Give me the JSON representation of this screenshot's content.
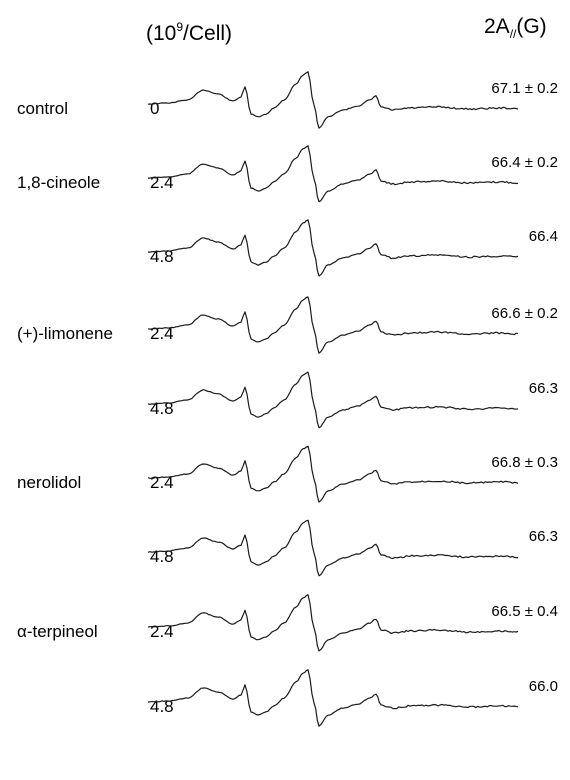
{
  "header": {
    "left_prefix": "(10",
    "left_exp": "9",
    "left_suffix": "/Cell)",
    "right_prefix": "2A",
    "right_sub": "//",
    "right_suffix": "(G)"
  },
  "rows": [
    {
      "compound": "control",
      "conc": "0",
      "value": "67.1 ± 0.2"
    },
    {
      "compound": "1,8-cineole",
      "conc": "2.4",
      "value": "66.4 ± 0.2"
    },
    {
      "compound": "",
      "conc": "4.8",
      "value": "66.4"
    },
    {
      "compound": "(+)-limonene",
      "conc": "2.4",
      "value": "66.6 ± 0.2"
    },
    {
      "compound": "",
      "conc": "4.8",
      "value": "66.3"
    },
    {
      "compound": "nerolidol",
      "conc": "2.4",
      "value": "66.8 ± 0.3"
    },
    {
      "compound": "",
      "conc": "4.8",
      "value": "66.3"
    },
    {
      "compound": "α-terpineol",
      "conc": "2.4",
      "value": "66.5 ± 0.4"
    },
    {
      "compound": "",
      "conc": "4.8",
      "value": "66.0"
    }
  ]
}
